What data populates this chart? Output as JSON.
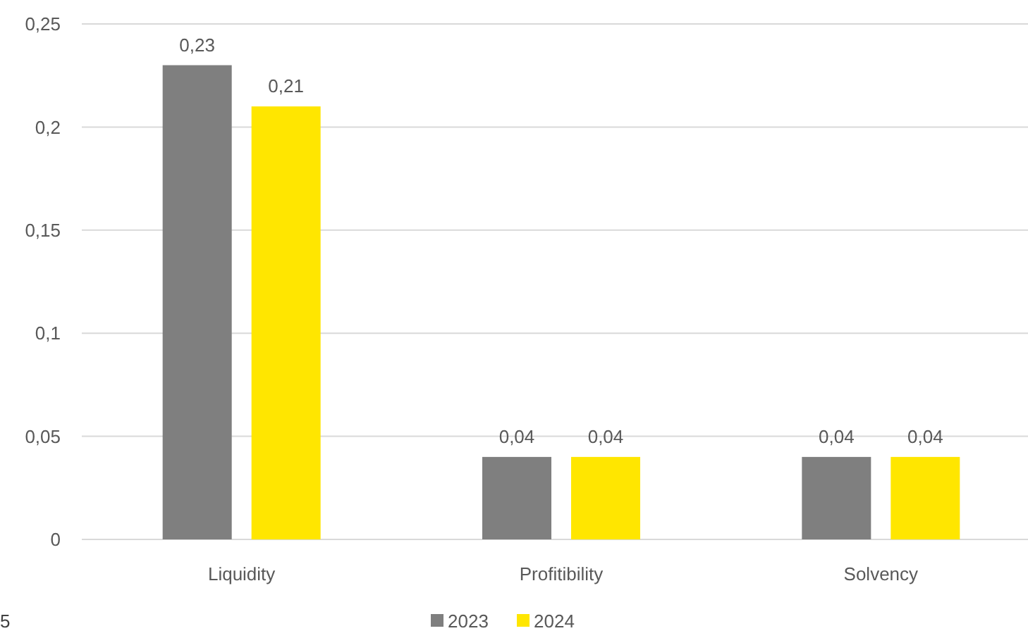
{
  "chart_data": {
    "type": "bar",
    "categories": [
      "Liquidity",
      "Profitibility",
      "Solvency"
    ],
    "series": [
      {
        "name": "2023",
        "color": "#7f7f7f",
        "values": [
          0.23,
          0.04,
          0.04
        ],
        "value_labels": [
          "0,23",
          "0,04",
          "0,04"
        ]
      },
      {
        "name": "2024",
        "color": "#ffe600",
        "values": [
          0.21,
          0.04,
          0.04
        ],
        "value_labels": [
          "0,21",
          "0,04",
          "0,04"
        ]
      }
    ],
    "ylim": [
      0,
      0.25
    ],
    "yticks": [
      {
        "value": 0,
        "label": "0"
      },
      {
        "value": 0.05,
        "label": "0,05"
      },
      {
        "value": 0.1,
        "label": "0,1"
      },
      {
        "value": 0.15,
        "label": "0,15"
      },
      {
        "value": 0.2,
        "label": "0,2"
      },
      {
        "value": 0.25,
        "label": "0,25"
      }
    ],
    "grid": "y",
    "legend": "bottom",
    "annotations": [
      "5"
    ]
  }
}
